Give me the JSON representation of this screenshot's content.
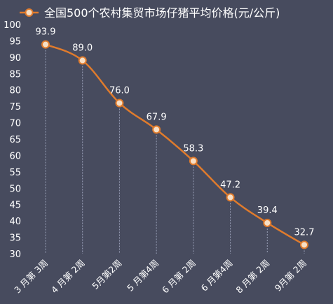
{
  "chart_data": {
    "type": "line",
    "title": "",
    "xlabel": "",
    "ylabel": "",
    "legend": {
      "position": "top-left",
      "entries": [
        "全国500个农村集贸市场仔猪平均价格(元/公斤)"
      ]
    },
    "categories": [
      "3 月第 3周",
      "4 月第 2周",
      "5月第2周",
      "5 月第4周",
      "6 月第 2周",
      "6 月第4周",
      "8 月第 2周",
      "9月第 2周"
    ],
    "series": [
      {
        "name": "全国500个农村集贸市场仔猪平均价格(元/公斤)",
        "values": [
          93.9,
          89.0,
          76.0,
          67.9,
          58.3,
          47.2,
          39.4,
          32.7
        ],
        "data_labels": [
          "93.9",
          "89.0",
          "76.0",
          "67.9",
          "58.3",
          "47.2",
          "39.4",
          "32.7"
        ]
      }
    ],
    "ylim": [
      30,
      100
    ],
    "yticks": [
      30,
      35,
      40,
      45,
      50,
      55,
      60,
      65,
      70,
      75,
      80,
      85,
      90,
      95,
      100
    ],
    "grid": "vertical-dashed-drop-lines",
    "colors": {
      "background": "#474b5e",
      "line": "#e07b2c",
      "marker_fill": "#f6dfc6",
      "marker_stroke": "#e07b2c",
      "drop_line": "#9aa0b8",
      "text": "#ffffff"
    }
  }
}
